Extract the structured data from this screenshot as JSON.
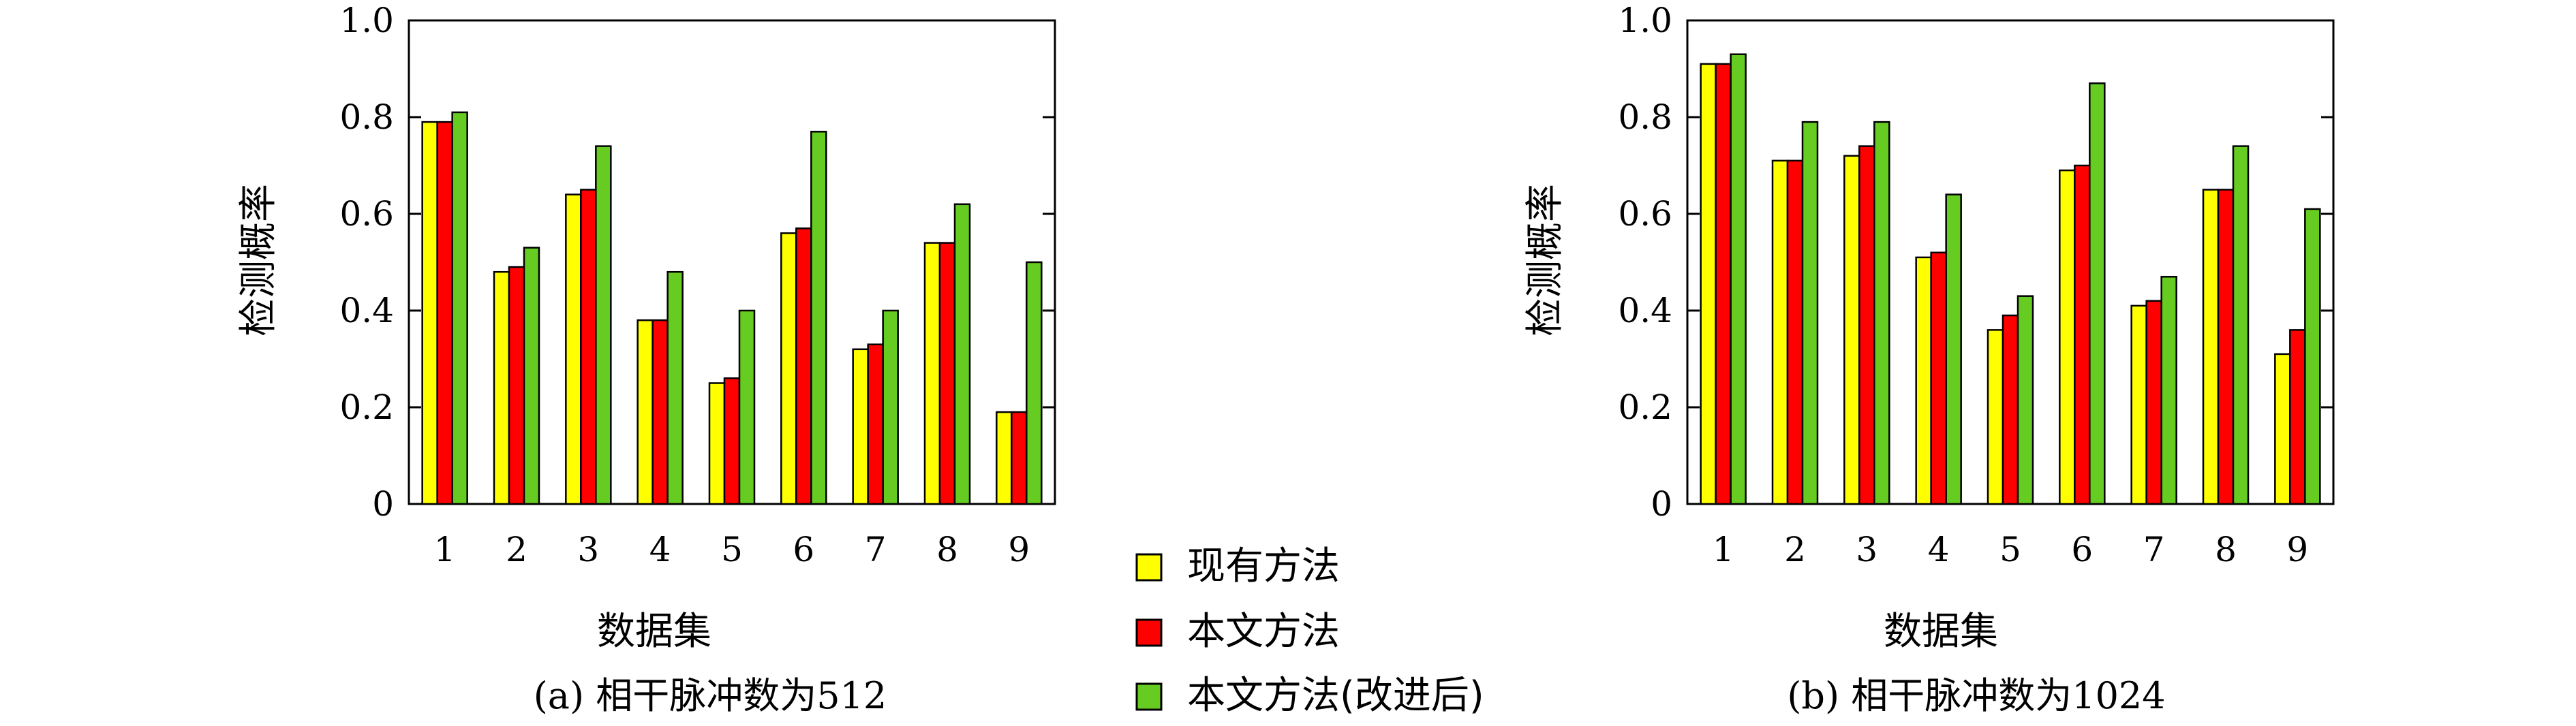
{
  "chart_data": [
    {
      "type": "bar",
      "caption": "(a) 相干脉冲数为512",
      "xlabel": "数据集",
      "ylabel": "检测概率",
      "categories": [
        "1",
        "2",
        "3",
        "4",
        "5",
        "6",
        "7",
        "8",
        "9"
      ],
      "ylim": [
        0,
        1.0
      ],
      "yticks": [
        "0",
        "0.2",
        "0.4",
        "0.6",
        "0.8",
        "1.0"
      ],
      "series": [
        {
          "name": "现有方法",
          "values": [
            0.79,
            0.48,
            0.64,
            0.38,
            0.25,
            0.56,
            0.32,
            0.54,
            0.19
          ]
        },
        {
          "name": "本文方法",
          "values": [
            0.79,
            0.49,
            0.65,
            0.38,
            0.26,
            0.57,
            0.33,
            0.54,
            0.19
          ]
        },
        {
          "name": "本文方法(改进后)",
          "values": [
            0.81,
            0.53,
            0.74,
            0.48,
            0.4,
            0.77,
            0.4,
            0.62,
            0.5
          ]
        }
      ]
    },
    {
      "type": "bar",
      "caption": "(b) 相干脉冲数为1024",
      "xlabel": "数据集",
      "ylabel": "检测概率",
      "categories": [
        "1",
        "2",
        "3",
        "4",
        "5",
        "6",
        "7",
        "8",
        "9"
      ],
      "ylim": [
        0,
        1.0
      ],
      "yticks": [
        "0",
        "0.2",
        "0.4",
        "0.6",
        "0.8",
        "1.0"
      ],
      "series": [
        {
          "name": "现有方法",
          "values": [
            0.91,
            0.71,
            0.72,
            0.51,
            0.36,
            0.69,
            0.41,
            0.65,
            0.31
          ]
        },
        {
          "name": "本文方法",
          "values": [
            0.91,
            0.71,
            0.74,
            0.52,
            0.39,
            0.7,
            0.42,
            0.65,
            0.36
          ]
        },
        {
          "name": "本文方法(改进后)",
          "values": [
            0.93,
            0.79,
            0.79,
            0.64,
            0.43,
            0.87,
            0.47,
            0.74,
            0.61
          ]
        }
      ]
    }
  ],
  "legend": {
    "placement": "bottom-center",
    "items": [
      {
        "label": "现有方法",
        "color": "#ffff00"
      },
      {
        "label": "本文方法",
        "color": "#ff0000"
      },
      {
        "label": "本文方法(改进后)",
        "color": "#66cc22"
      }
    ]
  }
}
